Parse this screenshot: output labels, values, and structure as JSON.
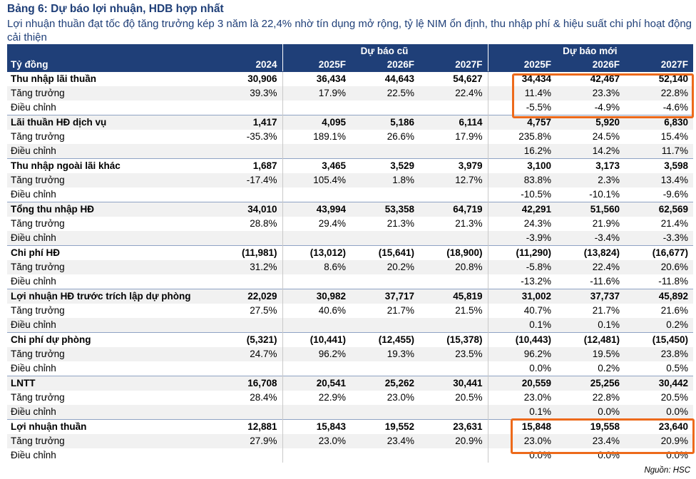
{
  "title": "Bảng 6: Dự báo lợi nhuận, HDB hợp nhất",
  "subtitle": "Lợi nhuận thuần đạt tốc độ tăng trưởng kép 3 năm là 22,4% nhờ tín dụng mở rộng, tỷ lệ NIM ổn định, thu nhập phí & hiệu suất chi phí hoạt động cải thiện",
  "header": {
    "group_old": "Dự báo cũ",
    "group_new": "Dự báo mới",
    "unit": "Tỷ đồng",
    "years": [
      "2024",
      "2025F",
      "2026F",
      "2027F",
      "2025F",
      "2026F",
      "2027F"
    ]
  },
  "rows": [
    {
      "label": "Thu nhập lãi thuần",
      "type": "main",
      "values": [
        "30,906",
        "36,434",
        "44,643",
        "54,627",
        "34,434",
        "42,467",
        "52,140"
      ]
    },
    {
      "label": "Tăng trưởng",
      "type": "sub",
      "values": [
        "39.3%",
        "17.9%",
        "22.5%",
        "22.4%",
        "11.4%",
        "23.3%",
        "22.8%"
      ]
    },
    {
      "label": "Điều chỉnh",
      "type": "sub",
      "values": [
        "",
        "",
        "",
        "",
        "-5.5%",
        "-4.9%",
        "-4.6%"
      ]
    },
    {
      "label": "Lãi thuần HĐ dịch vụ",
      "type": "main",
      "values": [
        "1,417",
        "4,095",
        "5,186",
        "6,114",
        "4,757",
        "5,920",
        "6,830"
      ]
    },
    {
      "label": "Tăng trưởng",
      "type": "sub",
      "values": [
        "-35.3%",
        "189.1%",
        "26.6%",
        "17.9%",
        "235.8%",
        "24.5%",
        "15.4%"
      ]
    },
    {
      "label": "Điều chỉnh",
      "type": "sub",
      "values": [
        "",
        "",
        "",
        "",
        "16.2%",
        "14.2%",
        "11.7%"
      ]
    },
    {
      "label": "Thu nhập ngoài lãi khác",
      "type": "main",
      "values": [
        "1,687",
        "3,465",
        "3,529",
        "3,979",
        "3,100",
        "3,173",
        "3,598"
      ]
    },
    {
      "label": "Tăng trưởng",
      "type": "sub",
      "values": [
        "-17.4%",
        "105.4%",
        "1.8%",
        "12.7%",
        "83.8%",
        "2.3%",
        "13.4%"
      ]
    },
    {
      "label": "Điều chỉnh",
      "type": "sub",
      "values": [
        "",
        "",
        "",
        "",
        "-10.5%",
        "-10.1%",
        "-9.6%"
      ]
    },
    {
      "label": "Tổng thu nhập HĐ",
      "type": "main",
      "values": [
        "34,010",
        "43,994",
        "53,358",
        "64,719",
        "42,291",
        "51,560",
        "62,569"
      ]
    },
    {
      "label": "Tăng trưởng",
      "type": "sub",
      "values": [
        "28.8%",
        "29.4%",
        "21.3%",
        "21.3%",
        "24.3%",
        "21.9%",
        "21.4%"
      ]
    },
    {
      "label": "Điều chỉnh",
      "type": "sub",
      "values": [
        "",
        "",
        "",
        "",
        "-3.9%",
        "-3.4%",
        "-3.3%"
      ]
    },
    {
      "label": "Chi phí HĐ",
      "type": "main",
      "values": [
        "(11,981)",
        "(13,012)",
        "(15,641)",
        "(18,900)",
        "(11,290)",
        "(13,824)",
        "(16,677)"
      ]
    },
    {
      "label": "Tăng trưởng",
      "type": "sub",
      "values": [
        "31.2%",
        "8.6%",
        "20.2%",
        "20.8%",
        "-5.8%",
        "22.4%",
        "20.6%"
      ]
    },
    {
      "label": "Điều chỉnh",
      "type": "sub",
      "values": [
        "",
        "",
        "",
        "",
        "-13.2%",
        "-11.6%",
        "-11.8%"
      ]
    },
    {
      "label": "Lợi nhuận HĐ trước trích lập dự phòng",
      "type": "main",
      "values": [
        "22,029",
        "30,982",
        "37,717",
        "45,819",
        "31,002",
        "37,737",
        "45,892"
      ]
    },
    {
      "label": "Tăng trưởng",
      "type": "sub",
      "values": [
        "27.5%",
        "40.6%",
        "21.7%",
        "21.5%",
        "40.7%",
        "21.7%",
        "21.6%"
      ]
    },
    {
      "label": "Điều chỉnh",
      "type": "sub",
      "values": [
        "",
        "",
        "",
        "",
        "0.1%",
        "0.1%",
        "0.2%"
      ]
    },
    {
      "label": "Chi phí dự phòng",
      "type": "main",
      "values": [
        "(5,321)",
        "(10,441)",
        "(12,455)",
        "(15,378)",
        "(10,443)",
        "(12,481)",
        "(15,450)"
      ]
    },
    {
      "label": "Tăng trưởng",
      "type": "sub",
      "values": [
        "24.7%",
        "96.2%",
        "19.3%",
        "23.5%",
        "96.2%",
        "19.5%",
        "23.8%"
      ]
    },
    {
      "label": "Điều chỉnh",
      "type": "sub",
      "values": [
        "",
        "",
        "",
        "",
        "0.0%",
        "0.2%",
        "0.5%"
      ]
    },
    {
      "label": "LNTT",
      "type": "main",
      "values": [
        "16,708",
        "20,541",
        "25,262",
        "30,441",
        "20,559",
        "25,256",
        "30,442"
      ]
    },
    {
      "label": "Tăng trưởng",
      "type": "sub",
      "values": [
        "28.4%",
        "22.9%",
        "23.0%",
        "20.5%",
        "23.0%",
        "22.8%",
        "20.5%"
      ]
    },
    {
      "label": "Điều chỉnh",
      "type": "sub",
      "values": [
        "",
        "",
        "",
        "",
        "0.1%",
        "0.0%",
        "0.0%"
      ]
    },
    {
      "label": "Lợi nhuận thuần",
      "type": "main",
      "values": [
        "12,881",
        "15,843",
        "19,552",
        "23,631",
        "15,848",
        "19,558",
        "23,640"
      ]
    },
    {
      "label": "Tăng trưởng",
      "type": "sub",
      "values": [
        "27.9%",
        "23.0%",
        "23.4%",
        "20.9%",
        "23.0%",
        "23.4%",
        "20.9%"
      ]
    },
    {
      "label": "Điều chỉnh",
      "type": "sub",
      "values": [
        "",
        "",
        "",
        "",
        "0.0%",
        "0.0%",
        "0.0%"
      ]
    }
  ],
  "highlight_color": "#ed6a1b",
  "header_color": "#1f3f78",
  "source": "Nguồn: HSC"
}
